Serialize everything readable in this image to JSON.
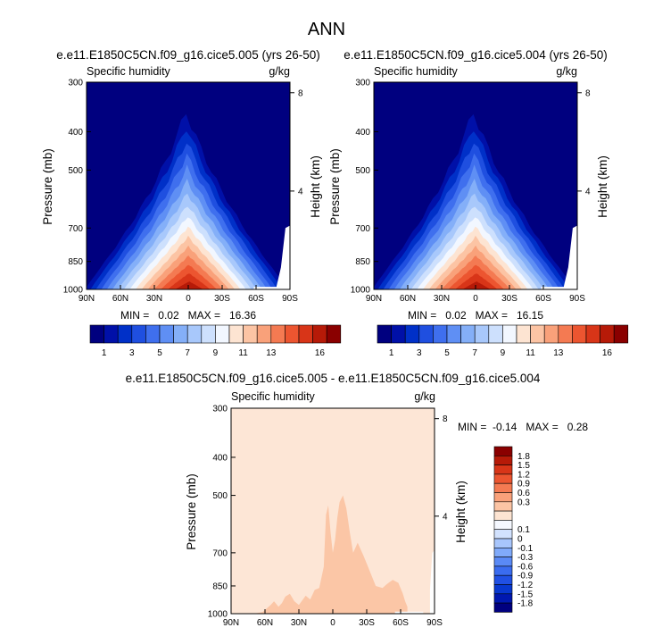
{
  "title": "ANN",
  "colors": {
    "base": [
      "#00007f",
      "#0010a8",
      "#0030c8",
      "#1f4fe0",
      "#3f6fee",
      "#5f8ff4",
      "#84aff8",
      "#a8c8fb",
      "#cde0fd",
      "#f2f7ff",
      "#fde4d2",
      "#fcc4a4",
      "#f9a17a",
      "#f47a52",
      "#ec5530",
      "#d83518",
      "#b61a08",
      "#8a0000"
    ],
    "diff": [
      "#00007f",
      "#0018b0",
      "#0838d0",
      "#2050e4",
      "#3a6cf0",
      "#5a8af6",
      "#80aafa",
      "#a8c6fc",
      "#d2e2fe",
      "#f5f8ff",
      "#fde4d2",
      "#fcc4a4",
      "#f9a17a",
      "#f47a52",
      "#ec5530",
      "#d83518",
      "#b61a08",
      "#8a0000"
    ]
  },
  "chart_data": [
    {
      "type": "contour",
      "title": "e.e11.E1850C5CN.f09_g16.cice5.005 (yrs 26-50)",
      "left_label": "Specific humidity",
      "right_label": "g/kg",
      "ylabel": "Pressure (mb)",
      "ylabel_right": "Height (km)",
      "xticks": [
        "90N",
        "60N",
        "30N",
        "0",
        "30S",
        "60S",
        "90S"
      ],
      "x_values": [
        90,
        60,
        30,
        0,
        -30,
        -60,
        -90
      ],
      "yticks": [
        300,
        400,
        500,
        700,
        850,
        1000
      ],
      "ylim": [
        300,
        1000
      ],
      "height_ticks": [
        8,
        4
      ],
      "min": "0.02",
      "max": "16.36",
      "stats": "MIN =   0.02   MAX =   16.36",
      "colorbar_labels": [
        "1",
        "3",
        "5",
        "7",
        "9",
        "11",
        "13",
        "16"
      ],
      "contour_levels": [
        0.5,
        1,
        1.5,
        2,
        3,
        4,
        5,
        6,
        7,
        8,
        9,
        10,
        11,
        12,
        13,
        14,
        15,
        16
      ],
      "peak": {
        "lat": 5,
        "pressure": 1000,
        "value": 16.36
      }
    },
    {
      "type": "contour",
      "title": "e.e11.E1850C5CN.f09_g16.cice5.004 (yrs 26-50)",
      "left_label": "Specific humidity",
      "right_label": "g/kg",
      "ylabel": "Pressure (mb)",
      "ylabel_right": "Height (km)",
      "xticks": [
        "90N",
        "60N",
        "30N",
        "0",
        "30S",
        "60S",
        "90S"
      ],
      "x_values": [
        90,
        60,
        30,
        0,
        -30,
        -60,
        -90
      ],
      "yticks": [
        300,
        400,
        500,
        700,
        850,
        1000
      ],
      "ylim": [
        300,
        1000
      ],
      "height_ticks": [
        8,
        4
      ],
      "min": "0.02",
      "max": "16.15",
      "stats": "MIN =   0.02   MAX =   16.15",
      "colorbar_labels": [
        "1",
        "3",
        "5",
        "7",
        "9",
        "11",
        "13",
        "16"
      ],
      "contour_levels": [
        0.5,
        1,
        1.5,
        2,
        3,
        4,
        5,
        6,
        7,
        8,
        9,
        10,
        11,
        12,
        13,
        14,
        15,
        16
      ],
      "peak": {
        "lat": 5,
        "pressure": 1000,
        "value": 16.15
      }
    },
    {
      "type": "contour",
      "title": "e.e11.E1850C5CN.f09_g16.cice5.005 - e.e11.E1850C5CN.f09_g16.cice5.004",
      "left_label": "Specific humidity",
      "right_label": "g/kg",
      "ylabel": "Pressure (mb)",
      "ylabel_right": "Height (km)",
      "xticks": [
        "90N",
        "60N",
        "30N",
        "0",
        "30S",
        "60S",
        "90S"
      ],
      "x_values": [
        90,
        60,
        30,
        0,
        -30,
        -60,
        -90
      ],
      "yticks": [
        300,
        400,
        500,
        700,
        850,
        1000
      ],
      "ylim": [
        300,
        1000
      ],
      "height_ticks": [
        8,
        4
      ],
      "min": "-0.14",
      "max": "0.28",
      "stats": "MIN =  -0.14   MAX =   0.28",
      "colorbar_labels": [
        "1.8",
        "1.5",
        "1.2",
        "0.9",
        "0.6",
        "0.3",
        "0.1",
        "0",
        "-0.1",
        "-0.3",
        "-0.6",
        "-0.9",
        "-1.2",
        "-1.5",
        "-1.8"
      ]
    }
  ]
}
